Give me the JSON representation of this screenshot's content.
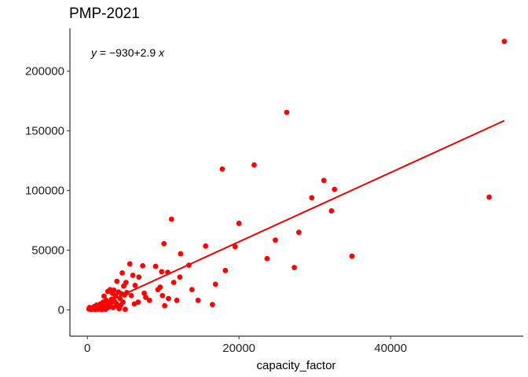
{
  "chart_data": {
    "type": "scatter",
    "title": "PMP-2021",
    "xlabel": "capacity_factor",
    "ylabel": "",
    "xlim": [
      -2300,
      57500
    ],
    "ylim": [
      -22000,
      236000
    ],
    "x_ticks": [
      0,
      20000,
      40000
    ],
    "x_tick_labels": [
      "0",
      "20000",
      "40000"
    ],
    "y_ticks": [
      0,
      50000,
      100000,
      150000,
      200000
    ],
    "y_tick_labels": [
      "0",
      "50000",
      "100000",
      "150000",
      "200000"
    ],
    "grid": false,
    "legend": "none",
    "point_color": "#FF0000",
    "line_color": "#E60000",
    "annotation": {
      "y_var": "y",
      "equals": " = −930+2.9 ",
      "x_var": "x"
    },
    "fit": {
      "intercept": -930,
      "slope": 2.9,
      "x_range": [
        200,
        55000
      ]
    },
    "points": [
      [
        200,
        800
      ],
      [
        300,
        2000
      ],
      [
        500,
        400
      ],
      [
        700,
        1500
      ],
      [
        900,
        2800
      ],
      [
        1000,
        300
      ],
      [
        1100,
        1200
      ],
      [
        1200,
        4000
      ],
      [
        1400,
        600
      ],
      [
        1500,
        2500
      ],
      [
        1600,
        1000
      ],
      [
        1700,
        5000
      ],
      [
        1800,
        3500
      ],
      [
        1900,
        200
      ],
      [
        2000,
        1800
      ],
      [
        2100,
        6500
      ],
      [
        2200,
        11500
      ],
      [
        2300,
        3000
      ],
      [
        2400,
        500
      ],
      [
        2500,
        8000
      ],
      [
        2600,
        1500
      ],
      [
        2700,
        15500
      ],
      [
        2800,
        4500
      ],
      [
        2900,
        2500
      ],
      [
        3000,
        17000
      ],
      [
        3100,
        6000
      ],
      [
        3200,
        9000
      ],
      [
        3300,
        14000
      ],
      [
        3400,
        2000
      ],
      [
        3500,
        16500
      ],
      [
        3600,
        7000
      ],
      [
        3700,
        12000
      ],
      [
        3800,
        5500
      ],
      [
        3900,
        24000
      ],
      [
        4000,
        3000
      ],
      [
        4100,
        15000
      ],
      [
        4200,
        1000
      ],
      [
        4300,
        9500
      ],
      [
        4400,
        4000
      ],
      [
        4500,
        13500
      ],
      [
        4600,
        31000
      ],
      [
        4700,
        6500
      ],
      [
        4800,
        20000
      ],
      [
        4900,
        12500
      ],
      [
        5000,
        500
      ],
      [
        5100,
        23000
      ],
      [
        5200,
        14500
      ],
      [
        5600,
        38500
      ],
      [
        5800,
        12000
      ],
      [
        6000,
        29000
      ],
      [
        6200,
        5000
      ],
      [
        6300,
        20500
      ],
      [
        6700,
        6500
      ],
      [
        6800,
        27500
      ],
      [
        7300,
        37000
      ],
      [
        7500,
        14000
      ],
      [
        7700,
        10500
      ],
      [
        8200,
        8000
      ],
      [
        9000,
        36500
      ],
      [
        9300,
        17000
      ],
      [
        9600,
        19000
      ],
      [
        9800,
        32000
      ],
      [
        9900,
        12000
      ],
      [
        10100,
        55500
      ],
      [
        10200,
        3500
      ],
      [
        10600,
        31500
      ],
      [
        10700,
        9500
      ],
      [
        11100,
        76000
      ],
      [
        11400,
        23000
      ],
      [
        11800,
        8000
      ],
      [
        12200,
        27500
      ],
      [
        12300,
        47000
      ],
      [
        13400,
        37500
      ],
      [
        13800,
        17000
      ],
      [
        14600,
        8000
      ],
      [
        15600,
        53500
      ],
      [
        16500,
        4500
      ],
      [
        16900,
        21500
      ],
      [
        17800,
        118000
      ],
      [
        18200,
        33000
      ],
      [
        19500,
        53000
      ],
      [
        20000,
        72500
      ],
      [
        22000,
        121500
      ],
      [
        23700,
        43000
      ],
      [
        24800,
        58500
      ],
      [
        26300,
        165500
      ],
      [
        27300,
        35500
      ],
      [
        27900,
        65000
      ],
      [
        29600,
        94000
      ],
      [
        31200,
        108500
      ],
      [
        32200,
        83000
      ],
      [
        32600,
        101000
      ],
      [
        34900,
        45000
      ],
      [
        53000,
        94500
      ],
      [
        55000,
        225000
      ]
    ]
  }
}
